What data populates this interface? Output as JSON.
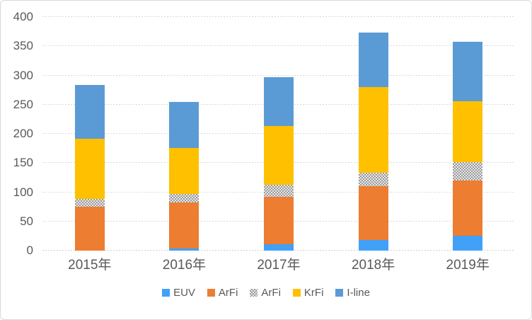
{
  "chart_data": {
    "type": "bar",
    "stacked": true,
    "title": "",
    "categories": [
      "2015年",
      "2016年",
      "2017年",
      "2018年",
      "2019年"
    ],
    "series": [
      {
        "name": "EUV",
        "color": "#41A0F8",
        "pattern": "solid",
        "values": [
          0,
          4,
          11,
          18,
          25
        ]
      },
      {
        "name": "ArFi",
        "color": "#ED7D31",
        "pattern": "solid",
        "values": [
          75,
          78,
          81,
          92,
          95
        ]
      },
      {
        "name": "ArFi",
        "color": "#A5A5A5",
        "pattern": "checker",
        "values": [
          14,
          15,
          21,
          23,
          32
        ]
      },
      {
        "name": "KrFi",
        "color": "#FFC000",
        "pattern": "solid",
        "values": [
          103,
          79,
          100,
          147,
          104
        ]
      },
      {
        "name": "I-line",
        "color": "#5B9BD5",
        "pattern": "solid",
        "values": [
          92,
          79,
          84,
          93,
          102
        ]
      }
    ],
    "totals": [
      284,
      255,
      297,
      373,
      358
    ],
    "ylim": [
      0,
      400
    ],
    "yticks": [
      0,
      50,
      100,
      150,
      200,
      250,
      300,
      350,
      400
    ],
    "grid": true,
    "legend_position": "bottom",
    "legend_labels": [
      "EUV",
      "ArFi",
      "ArFi",
      "KrFi",
      "I-line"
    ],
    "axis_text_color": "#595959",
    "gridline_color": "#D9D9D9"
  }
}
